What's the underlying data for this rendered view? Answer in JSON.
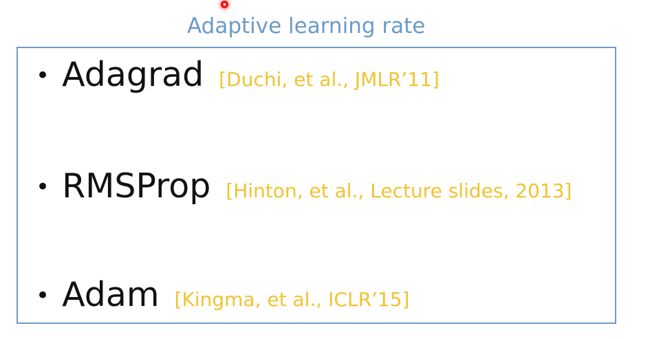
{
  "title": "Adaptive learning rate",
  "items": [
    {
      "bullet": "•",
      "name": "Adagrad",
      "citation": "[Duchi, et al., JMLR’11]"
    },
    {
      "bullet": "•",
      "name": "RMSProp",
      "citation": "[Hinton, et al., Lecture slides, 2013]"
    },
    {
      "bullet": "•",
      "name": "Adam",
      "citation": "[Kingma, et al., ICLR’15]"
    }
  ],
  "colors": {
    "title": "#6a9ac9",
    "border": "#6f9bc8",
    "citation": "#f2c230",
    "text": "#111111",
    "laser_pointer": "#e00000"
  }
}
